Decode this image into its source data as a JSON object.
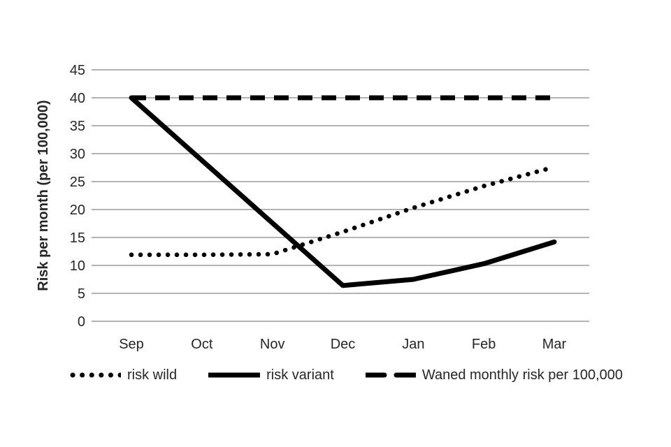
{
  "chart_data": {
    "type": "line",
    "title": "",
    "xlabel": "",
    "ylabel": "Risk per month (per 100,000)",
    "categories": [
      "Sep",
      "Oct",
      "Nov",
      "Dec",
      "Jan",
      "Feb",
      "Mar"
    ],
    "yticks": [
      0,
      5,
      10,
      15,
      20,
      25,
      30,
      35,
      40,
      45
    ],
    "ylim": [
      0,
      45
    ],
    "grid": "horizontal",
    "legend_position": "bottom",
    "colors": {
      "series_line": "#000000",
      "gridline": "#b3b3b3",
      "text": "#262626",
      "background": "#ffffff"
    },
    "series": [
      {
        "name": "risk wild",
        "style": "dotted",
        "values": [
          11.9,
          11.9,
          12.0,
          16.0,
          20.3,
          24.2,
          27.6
        ]
      },
      {
        "name": "risk variant",
        "style": "solid",
        "values": [
          40,
          28.8,
          17.6,
          6.4,
          7.5,
          10.3,
          14.2
        ]
      },
      {
        "name": "Waned monthly risk per 100,000",
        "style": "dashed",
        "values": [
          40,
          40,
          40,
          40,
          40,
          40,
          40
        ]
      }
    ]
  }
}
